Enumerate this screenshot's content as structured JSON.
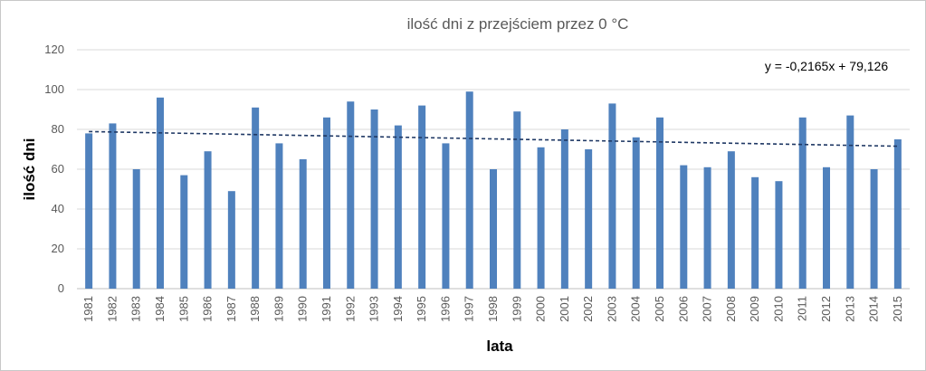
{
  "chart_data": {
    "type": "bar",
    "title": "ilość dni z przejściem przez 0 °C",
    "xlabel": "lata",
    "ylabel": "ilość dni",
    "ylim": [
      0,
      120
    ],
    "yticks": [
      "0",
      "20",
      "40",
      "60",
      "80",
      "100",
      "120"
    ],
    "grid": true,
    "categories": [
      "1981",
      "1982",
      "1983",
      "1984",
      "1985",
      "1986",
      "1987",
      "1988",
      "1989",
      "1990",
      "1991",
      "1992",
      "1993",
      "1994",
      "1995",
      "1996",
      "1997",
      "1998",
      "1999",
      "2000",
      "2001",
      "2002",
      "2003",
      "2004",
      "2005",
      "2006",
      "2007",
      "2008",
      "2009",
      "2010",
      "2011",
      "2012",
      "2013",
      "2014",
      "2015"
    ],
    "values": [
      78,
      83,
      60,
      96,
      57,
      69,
      49,
      91,
      73,
      65,
      86,
      94,
      90,
      82,
      92,
      73,
      99,
      60,
      89,
      71,
      80,
      70,
      93,
      76,
      86,
      62,
      61,
      69,
      56,
      54,
      86,
      61,
      87,
      60,
      75
    ],
    "trendline": {
      "equation": "y = -0,2165x + 79,126",
      "slope": -0.2165,
      "intercept": 79.126,
      "style": "dashed"
    },
    "colors": {
      "bar": "#4f81bd",
      "trendline": "#1f3864",
      "grid": "#d9d9d9",
      "text": "#595959"
    }
  }
}
